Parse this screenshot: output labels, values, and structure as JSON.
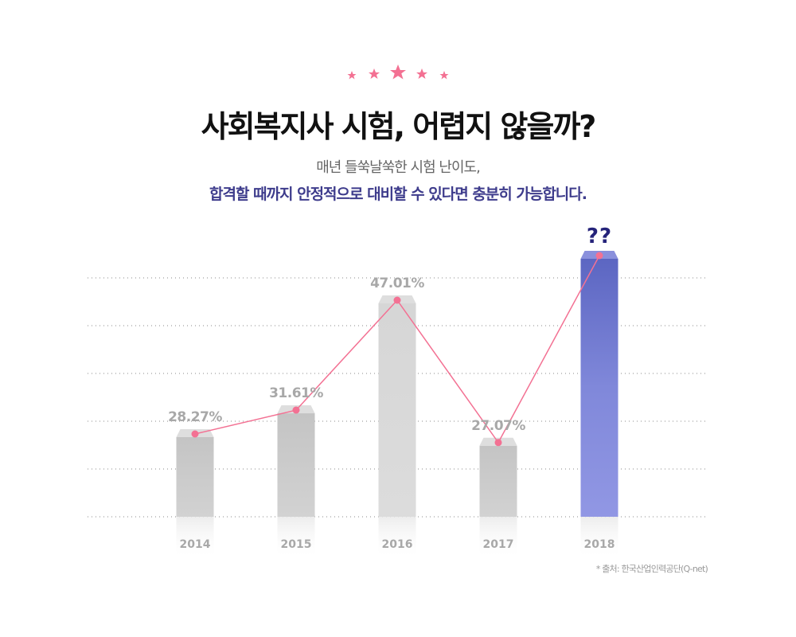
{
  "header": {
    "title": "사회복지사 시험, 어렵지 않을까?",
    "subtitle_line1": "매년 들쑥날쑥한 시험 난이도,",
    "subtitle_line2": "합격할 때까지 안정적으로 대비할 수 있다면 충분히 가능합니다."
  },
  "colors": {
    "accent": "#f37193",
    "highlight_bar": "#7b82d8",
    "bar": "#cfcfcf",
    "subtitle": "#3e3c8c"
  },
  "chart_data": {
    "type": "bar",
    "categories": [
      "2014",
      "2015",
      "2016",
      "2017",
      "2018"
    ],
    "values": [
      28.27,
      31.61,
      47.01,
      27.07,
      null
    ],
    "labels": [
      "28.27%",
      "31.61%",
      "47.01%",
      "27.07%",
      "??"
    ],
    "unit": "%",
    "overlay": "line",
    "grid": true,
    "highlight_category": "2018"
  },
  "source": "* 출처: 한국산업인력공단(Q-net)"
}
